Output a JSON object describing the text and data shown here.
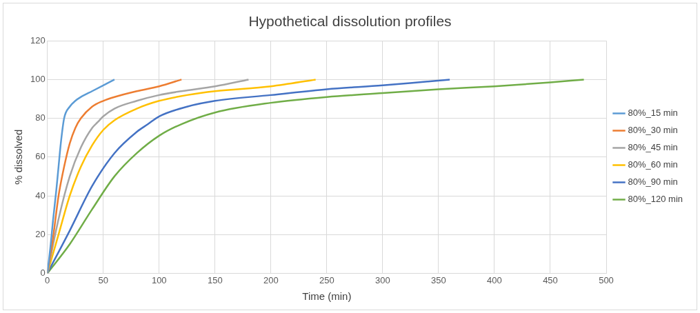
{
  "chart_data": {
    "type": "line",
    "title": "Hypothetical dissolution profiles",
    "xlabel": "Time (min)",
    "ylabel": "% dissolved",
    "xlim": [
      0,
      500
    ],
    "xticks": [
      0,
      50,
      100,
      150,
      200,
      250,
      300,
      350,
      400,
      450,
      500
    ],
    "ylim": [
      0,
      120
    ],
    "yticks": [
      0,
      20,
      40,
      60,
      80,
      100,
      120
    ],
    "grid": true,
    "legend": "right",
    "marker": "none",
    "line_style": "solid",
    "series": [
      {
        "name": "80%_15 min",
        "color": "#5b9bd5",
        "x": [
          0,
          3,
          5,
          8,
          10,
          12,
          15,
          20,
          25,
          30,
          40,
          50,
          60
        ],
        "values": [
          0,
          15,
          27,
          43,
          55,
          67,
          80,
          86,
          89,
          91,
          94,
          97,
          100
        ]
      },
      {
        "name": "80%_30 min",
        "color": "#ed7d31",
        "x": [
          0,
          5,
          10,
          15,
          20,
          25,
          30,
          40,
          50,
          60,
          80,
          100,
          120
        ],
        "values": [
          0,
          18,
          40,
          55,
          67,
          75,
          80,
          86,
          89,
          91,
          94,
          96.5,
          100
        ]
      },
      {
        "name": "80%_45 min",
        "color": "#a5a5a5",
        "x": [
          0,
          10,
          20,
          30,
          40,
          45,
          50,
          60,
          80,
          100,
          120,
          150,
          180
        ],
        "values": [
          0,
          28,
          50,
          65,
          75,
          78,
          81,
          85,
          89,
          92,
          94,
          96.5,
          100
        ]
      },
      {
        "name": "80%_60 min",
        "color": "#ffc000",
        "x": [
          0,
          10,
          20,
          30,
          40,
          50,
          60,
          80,
          100,
          125,
          150,
          200,
          240
        ],
        "values": [
          0,
          20,
          40,
          55,
          66,
          74,
          79,
          85,
          89,
          92,
          94,
          96.5,
          100
        ]
      },
      {
        "name": "80%_90 min",
        "color": "#4472c4",
        "x": [
          0,
          20,
          40,
          60,
          80,
          90,
          100,
          125,
          150,
          200,
          250,
          300,
          340,
          360
        ],
        "values": [
          0,
          22,
          45,
          62,
          73,
          77,
          81,
          86,
          89,
          92,
          95,
          97,
          99,
          100
        ]
      },
      {
        "name": "80%_120 min",
        "color": "#70ad47",
        "x": [
          0,
          20,
          40,
          60,
          80,
          100,
          120,
          150,
          200,
          250,
          300,
          350,
          400,
          450,
          480
        ],
        "values": [
          0,
          15,
          33,
          50,
          62,
          71,
          77,
          83,
          88,
          91,
          93,
          95,
          96.5,
          98.5,
          100
        ]
      }
    ]
  }
}
